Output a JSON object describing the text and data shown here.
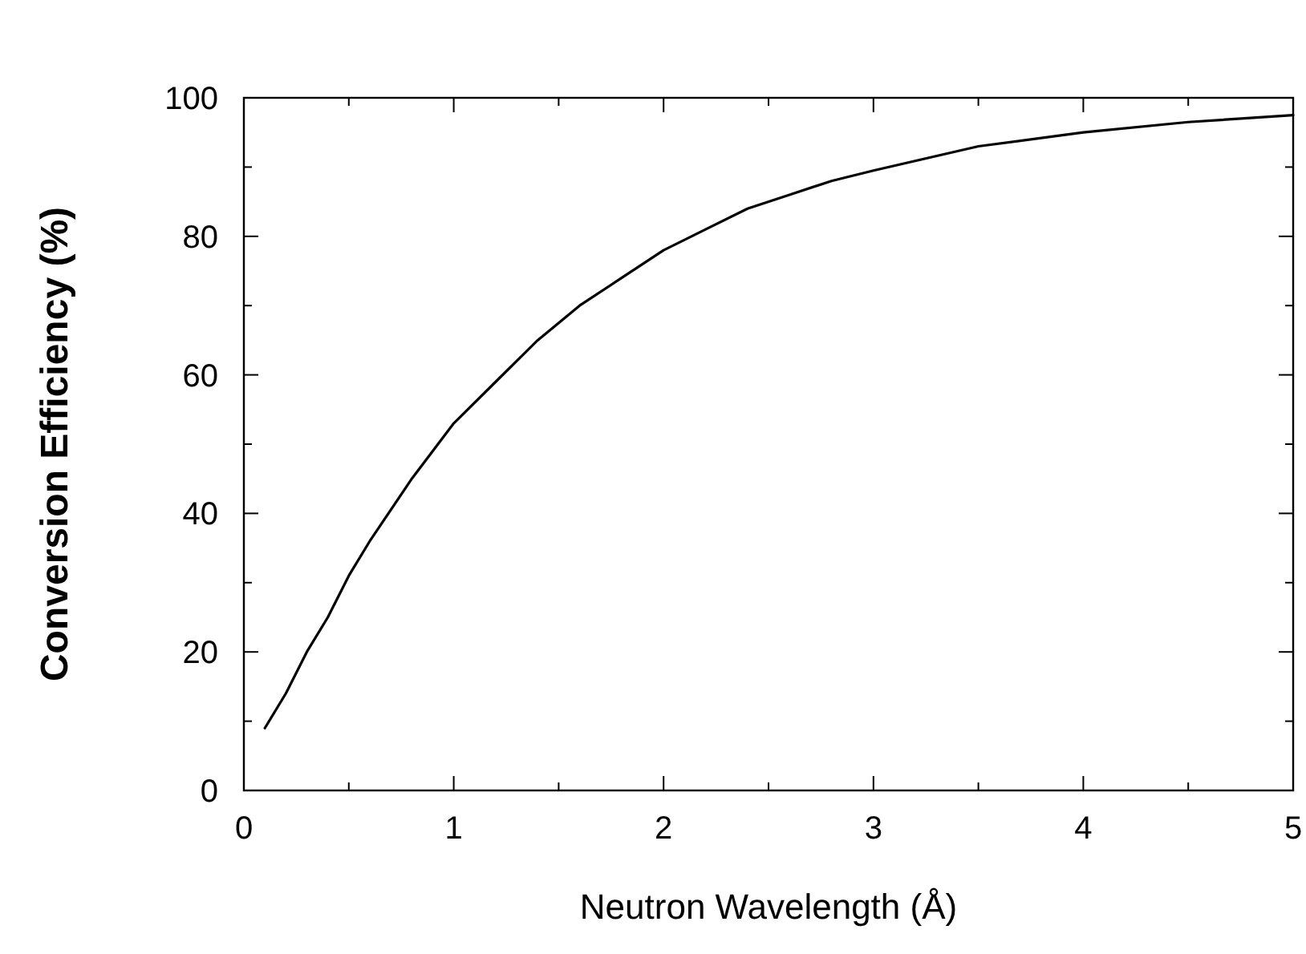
{
  "chart_data": {
    "type": "line",
    "xlabel": "Neutron Wavelength (Å)",
    "ylabel": "Conversion Efficiency (%)",
    "x": [
      0.1,
      0.2,
      0.3,
      0.4,
      0.5,
      0.6,
      0.8,
      1.0,
      1.2,
      1.4,
      1.6,
      1.8,
      2.0,
      2.2,
      2.4,
      2.6,
      2.8,
      3.0,
      3.5,
      4.0,
      4.5,
      5.0
    ],
    "series": [
      {
        "color": "#000000",
        "values": [
          9,
          14,
          20,
          25,
          31,
          36,
          45,
          53,
          59,
          65,
          70,
          74,
          78,
          81,
          84,
          86,
          88,
          89.5,
          93,
          95,
          96.5,
          97.5
        ]
      }
    ],
    "xlim": [
      0,
      5
    ],
    "ylim": [
      0,
      100
    ],
    "xticks": [
      0,
      {
        "value": 0.5,
        "label": null
      },
      1,
      {
        "value": 1.5,
        "label": null
      },
      2,
      {
        "value": 2.5,
        "label": null
      },
      3,
      {
        "value": 3.5,
        "label": null
      },
      4,
      {
        "value": 4.5,
        "label": null
      },
      5
    ],
    "yticks": [
      0,
      {
        "value": 10,
        "label": null
      },
      20,
      {
        "value": 30,
        "label": null
      },
      40,
      {
        "value": 50,
        "label": null
      },
      60,
      {
        "value": 70,
        "label": null
      },
      80,
      {
        "value": 90,
        "label": null
      },
      100
    ],
    "grid": false,
    "marker": "none",
    "line_style": "solid"
  }
}
